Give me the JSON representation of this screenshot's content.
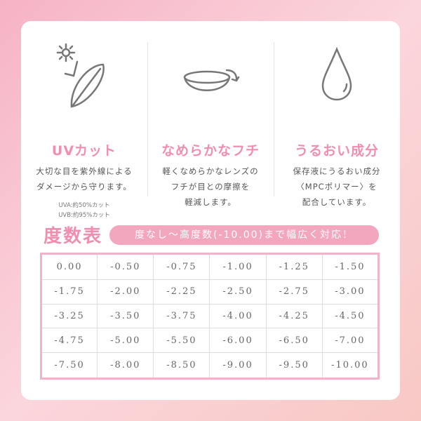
{
  "features": [
    {
      "icon": "sun-lens-icon",
      "title": "UVカット",
      "body": [
        "大切な目を紫外線による",
        "ダメージから守ります。"
      ],
      "notes": [
        "UVA:約50%カット",
        "UVB:約95%カット"
      ]
    },
    {
      "icon": "lens-rotate-icon",
      "title": "なめらかなフチ",
      "body": [
        "軽くなめらかなレンズの",
        "フチが目との摩擦を",
        "軽減します。"
      ]
    },
    {
      "icon": "water-drop-icon",
      "title": "うるおい成分",
      "body": [
        "保存液にうるおい成分",
        "〈MPCポリマー〉を",
        "配合しています。"
      ]
    }
  ],
  "power_table": {
    "title": "度数表",
    "tagline": "度なし〜高度数(-10.00)まで幅広く対応！",
    "rows": [
      [
        "0.00",
        "-0.50",
        "-0.75",
        "-1.00",
        "-1.25",
        "-1.50"
      ],
      [
        "-1.75",
        "-2.00",
        "-2.25",
        "-2.50",
        "-2.75",
        "-3.00"
      ],
      [
        "-3.25",
        "-3.50",
        "-3.75",
        "-4.00",
        "-4.25",
        "-4.50"
      ],
      [
        "-4.75",
        "-5.00",
        "-5.50",
        "-6.00",
        "-6.50",
        "-7.00"
      ],
      [
        "-7.50",
        "-8.00",
        "-8.50",
        "-9.00",
        "-9.50",
        "-10.00"
      ]
    ]
  },
  "colors": {
    "accent": "#ef8fb0",
    "pill": "#f3a7bf",
    "border": "#f1b3c6"
  }
}
